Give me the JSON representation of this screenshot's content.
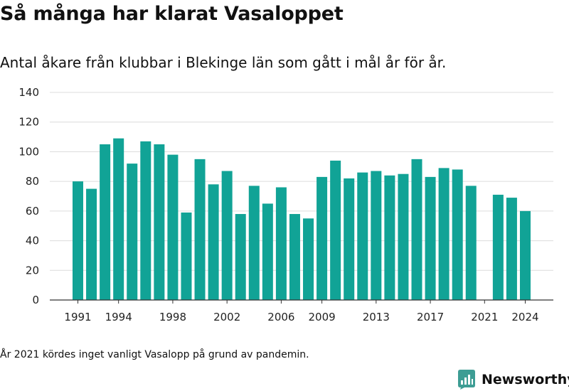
{
  "title": "Så många har klarat Vasaloppet",
  "subtitle": "Antal åkare från klubbar i Blekinge län som gått i mål år för år.",
  "footnote": "År 2021 kördes inget vanligt Vasalopp på grund av pandemin.",
  "brand": {
    "name": "Newsworthy",
    "icon": "newsworthy-logo-icon",
    "color": "#3d9d94"
  },
  "chart_data": {
    "type": "bar",
    "title": "",
    "xlabel": "",
    "ylabel": "",
    "ylim": [
      0,
      140
    ],
    "yticks": [
      0,
      20,
      40,
      60,
      80,
      100,
      120,
      140
    ],
    "xticks": [
      "1991",
      "1994",
      "1998",
      "2002",
      "2006",
      "2009",
      "2013",
      "2017",
      "2021",
      "2024"
    ],
    "grid": true,
    "bar_color": "#11a396",
    "categories": [
      1991,
      1992,
      1993,
      1994,
      1995,
      1996,
      1997,
      1998,
      1999,
      2000,
      2001,
      2002,
      2003,
      2004,
      2005,
      2006,
      2007,
      2008,
      2009,
      2010,
      2011,
      2012,
      2013,
      2014,
      2015,
      2016,
      2017,
      2018,
      2019,
      2020,
      2021,
      2022,
      2023,
      2024
    ],
    "values": [
      80,
      75,
      105,
      109,
      92,
      107,
      105,
      98,
      59,
      95,
      78,
      87,
      58,
      77,
      65,
      76,
      58,
      55,
      83,
      94,
      82,
      86,
      87,
      84,
      85,
      95,
      83,
      89,
      88,
      77,
      null,
      71,
      69,
      60
    ]
  }
}
